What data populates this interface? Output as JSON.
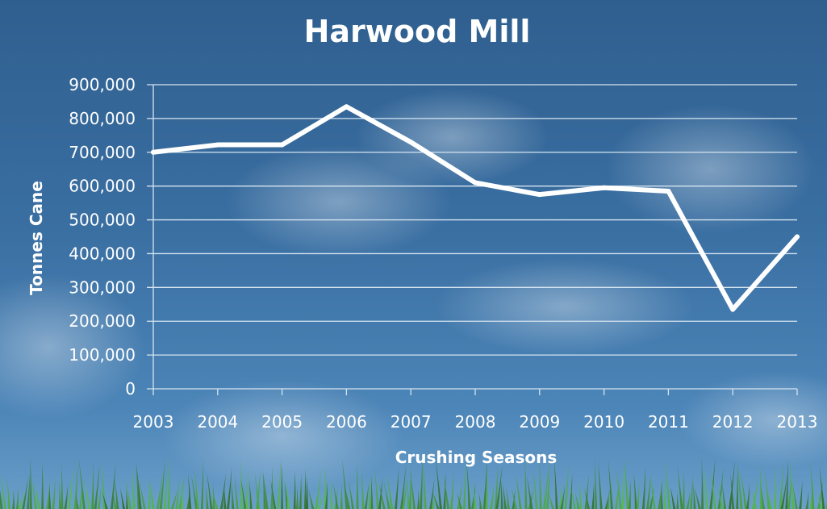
{
  "chart_data": {
    "type": "line",
    "title": "Harwood Mill",
    "xlabel": "Crushing Seasons",
    "ylabel": "Tonnes Cane",
    "categories": [
      "2003",
      "2004",
      "2005",
      "2006",
      "2007",
      "2008",
      "2009",
      "2010",
      "2011",
      "2012",
      "2013"
    ],
    "series": [
      {
        "values": [
          700000,
          722000,
          722000,
          835000,
          730000,
          610000,
          575000,
          595000,
          585000,
          235000,
          450000
        ]
      }
    ],
    "ylim": [
      0,
      900000
    ],
    "yticks": [
      0,
      100000,
      200000,
      300000,
      400000,
      500000,
      600000,
      700000,
      800000,
      900000
    ],
    "ytick_labels": [
      "0",
      "100,000",
      "200,000",
      "300,000",
      "400,000",
      "500,000",
      "600,000",
      "700,000",
      "800,000",
      "900,000"
    ],
    "grid": true,
    "legend": "none",
    "colors": {
      "line": "#ffffff",
      "grid": "#d6e4f0",
      "text": "#ffffff"
    }
  }
}
